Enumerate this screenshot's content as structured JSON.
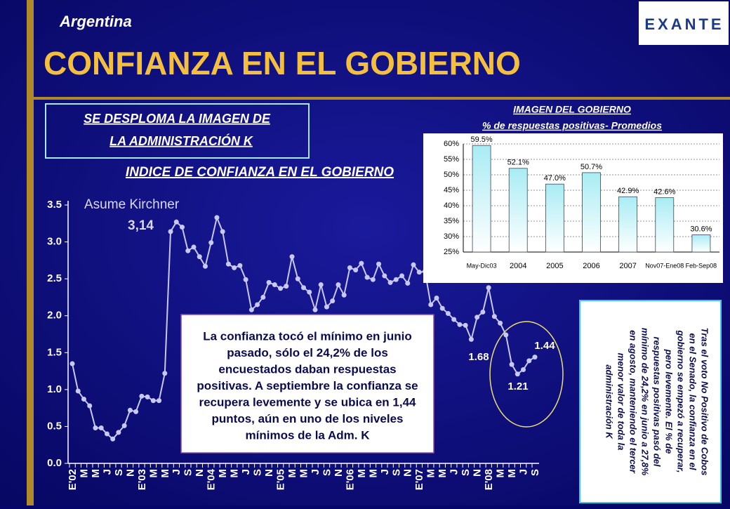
{
  "header": {
    "country": "Argentina",
    "title": "CONFIANZA EN EL GOBIERNO",
    "logo": "EXANTE"
  },
  "headline": [
    "SE DESPLOMA LA IMAGEN DE",
    "LA ADMINISTRACIÓN K"
  ],
  "note": [
    "La confianza tocó el mínimo en  junio",
    "pasado, sólo el 24,2% de los",
    "encuestados daban respuestas",
    "positivas. A septiembre la confianza se",
    "recupera levemente y se ubica en 1,44",
    "puntos, aún en uno de los niveles",
    "mínimos de la Adm. K"
  ],
  "side_note": [
    "Tras el voto No Positivo de Cobos",
    "en el Senado, la confianza en el",
    "gobierno se  empezó a recuperar,",
    "pero levemente. El % de",
    "respuestas positivas pasó del",
    "mínimo de 24,2% en junio a 27,8%",
    "en agosto, manteniendo el tercer",
    "menor valor de toda la",
    "administración K"
  ],
  "chart_data": [
    {
      "type": "line",
      "title": "INDICE DE CONFIANZA EN EL GOBIERNO",
      "color": "#c8c8f4",
      "categories": [
        "E'02",
        null,
        "M",
        null,
        "M",
        null,
        "J",
        null,
        "S",
        null,
        "N",
        null,
        "E'03",
        null,
        "M",
        null,
        "M",
        null,
        "J",
        null,
        "S",
        null,
        "N",
        null,
        "E'04",
        null,
        "M",
        null,
        "M",
        null,
        "J",
        null,
        "S",
        null,
        "N",
        null,
        "E'05",
        null,
        "M",
        null,
        "M",
        null,
        "J",
        null,
        "S",
        null,
        "N",
        null,
        "E'06",
        null,
        "M",
        null,
        "M",
        null,
        "J",
        null,
        "S",
        null,
        "N",
        null,
        "E'07",
        null,
        "M",
        null,
        "M",
        null,
        "J",
        null,
        "S",
        null,
        "N",
        null,
        "E'08",
        null,
        "M",
        null,
        "M",
        null,
        "J",
        null,
        "S"
      ],
      "values": [
        1.35,
        0.98,
        0.87,
        0.78,
        0.48,
        0.48,
        0.4,
        0.33,
        0.42,
        0.51,
        0.72,
        0.7,
        0.91,
        0.9,
        0.85,
        0.85,
        1.22,
        3.14,
        3.27,
        3.2,
        2.88,
        2.93,
        2.8,
        2.67,
        2.99,
        3.33,
        3.14,
        2.7,
        2.65,
        2.68,
        2.49,
        2.08,
        2.15,
        2.25,
        2.45,
        2.42,
        2.37,
        2.4,
        2.8,
        2.5,
        2.38,
        2.32,
        2.08,
        2.42,
        2.12,
        2.2,
        2.42,
        2.28,
        2.65,
        2.62,
        2.71,
        2.52,
        2.49,
        2.7,
        2.54,
        2.45,
        2.49,
        2.54,
        2.44,
        2.69,
        2.59,
        2.6,
        2.15,
        2.24,
        2.1,
        2.03,
        1.95,
        1.88,
        1.87,
        1.68,
        1.98,
        2.05,
        2.38,
        1.99,
        1.9,
        1.74,
        1.34,
        1.21,
        1.27,
        1.39,
        1.44
      ],
      "ylim": [
        0,
        3.5
      ],
      "yticks": [
        {
          "value": 0,
          "label": "0.0"
        },
        0.5,
        {
          "value": 1,
          "label": "1.0"
        },
        1.5,
        {
          "value": 2,
          "label": "2.0"
        },
        2.5,
        {
          "value": 3,
          "label": "3.0"
        },
        3.5
      ],
      "annotations": [
        "Asume Kirchner",
        "3,14",
        "1.68",
        "1.21",
        "1.44"
      ]
    },
    {
      "type": "bar",
      "title": "IMAGEN DEL GOBIERNO",
      "subtitle": "% de respuestas positivas- Promedios",
      "categories": [
        "May-Dic03",
        "2004",
        "2005",
        "2006",
        "2007",
        "Nov07-Ene08",
        "Feb-Sep08"
      ],
      "values": [
        59.5,
        52.1,
        47.0,
        50.7,
        42.9,
        42.6,
        30.6
      ],
      "value_labels": [
        "59.5%",
        "52.1%",
        "47.0%",
        "50.7%",
        "42.9%",
        "42.6%",
        "30.6%"
      ],
      "ylim": [
        25,
        60
      ],
      "yticks": [
        {
          "value": 25,
          "label": "25%"
        },
        {
          "value": 30,
          "label": "30%"
        },
        {
          "value": 35,
          "label": "35%"
        },
        {
          "value": 40,
          "label": "40%"
        },
        {
          "value": 45,
          "label": "45%"
        },
        {
          "value": 50,
          "label": "50%"
        },
        {
          "value": 55,
          "label": "55%"
        },
        {
          "value": 60,
          "label": "60%"
        }
      ]
    }
  ]
}
